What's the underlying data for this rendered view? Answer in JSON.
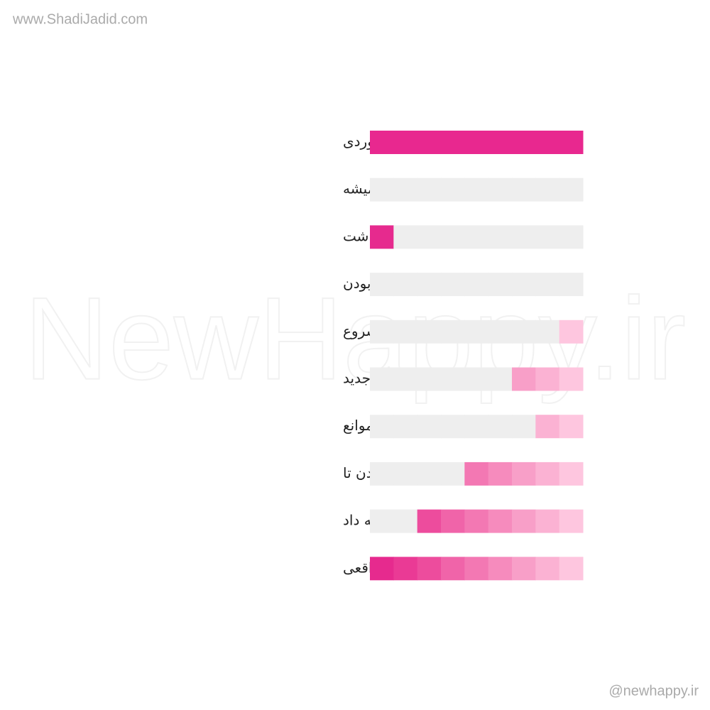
{
  "header": {
    "site": "www.ShadiJadid.com"
  },
  "watermark": "NewHappy.ir",
  "footer": {
    "handle": "@newhappy.ir"
  },
  "empty_color": "#eeeeee",
  "rows": [
    {
      "label": "هر دستاوردی",
      "segments": [
        "#e8288f",
        "#e8288f",
        "#e8288f",
        "#e8288f",
        "#e8288f",
        "#e8288f",
        "#e8288f",
        "#e8288f",
        "#e8288f"
      ]
    },
    {
      "label": "از هیچ چیز شروع میشه",
      "segments": [
        null,
        null,
        null,
        null,
        null,
        null,
        null,
        null,
        null
      ]
    },
    {
      "label": "یک نفر ایده ای داشت",
      "segments": [
        "#e62a8e",
        null,
        null,
        null,
        null,
        null,
        null,
        null,
        null
      ]
    },
    {
      "label": "اونا به اندازه کافی شجاع بودن",
      "segments": [
        null,
        null,
        null,
        null,
        null,
        null,
        null,
        null,
        null
      ]
    },
    {
      "label": "فقط برای شروع",
      "segments": [
        null,
        null,
        null,
        null,
        null,
        null,
        null,
        null,
        "#fec6df"
      ]
    },
    {
      "label": "برای یادگیری چیزهای جدید",
      "segments": [
        null,
        null,
        null,
        null,
        null,
        null,
        "#f89fc8",
        "#fbb2d3",
        "#fec6df"
      ]
    },
    {
      "label": "برای غلبه بر موانع",
      "segments": [
        null,
        null,
        null,
        null,
        null,
        null,
        null,
        "#fbb2d3",
        "#fec6df"
      ]
    },
    {
      "label": "برای ادامه دادن تا",
      "segments": [
        null,
        null,
        null,
        null,
        "#f378b3",
        "#f68bbd",
        "#f89fc8",
        "#fbb2d3",
        "#fec6df"
      ]
    },
    {
      "label": "تلاش اونا نتیجه داد",
      "segments": [
        null,
        null,
        "#ed4c9d",
        "#f064a9",
        "#f378b3",
        "#f68bbd",
        "#f89fc8",
        "#fbb2d3",
        "#fec6df"
      ]
    },
    {
      "label": "برای یک چیز واقعی",
      "segments": [
        "#e62a8e",
        "#ea3a95",
        "#ed4c9d",
        "#f064a9",
        "#f378b3",
        "#f68bbd",
        "#f89fc8",
        "#fbb2d3",
        "#fec6df"
      ]
    }
  ]
}
